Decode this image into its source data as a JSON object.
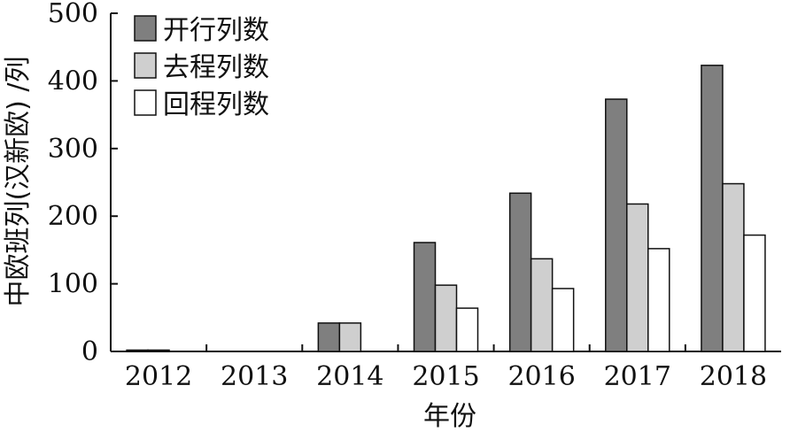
{
  "chart_data": {
    "type": "bar",
    "xlabel": "年份",
    "ylabel": "中欧班列(汉新欧) /列",
    "categories": [
      "2012",
      "2013",
      "2014",
      "2015",
      "2016",
      "2017",
      "2018"
    ],
    "ylim": [
      0,
      500
    ],
    "yticks": [
      "0",
      "100",
      "200",
      "300",
      "400",
      "500"
    ],
    "legend_position": "top-left",
    "grid": false,
    "series": [
      {
        "name": "开行列数",
        "color": "#7f7f7f",
        "values": [
          2,
          0,
          42,
          161,
          234,
          373,
          423
        ]
      },
      {
        "name": "去程列数",
        "color": "#cfcfcf",
        "values": [
          2,
          0,
          42,
          98,
          137,
          218,
          248
        ]
      },
      {
        "name": "回程列数",
        "color": "#ffffff",
        "values": [
          0,
          0,
          0,
          64,
          93,
          152,
          172
        ]
      }
    ]
  }
}
